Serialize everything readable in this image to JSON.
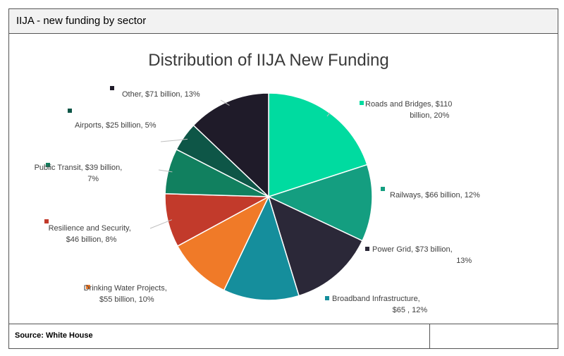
{
  "panel": {
    "title": "IIJA - new funding by sector",
    "source": "Source: White House",
    "note": ""
  },
  "chart_data": {
    "type": "pie",
    "title": "Distribution of IIJA New Funding",
    "slices": [
      {
        "label": "Roads and Bridges,  $110 billion, 20%",
        "lines": [
          "Roads and Bridges,  $110",
          "billion, 20%"
        ],
        "value": 110,
        "percent": 20,
        "color": "#00dba0"
      },
      {
        "label": "Railways,  $66 billion, 12%",
        "lines": [
          "Railways,  $66 billion, 12%"
        ],
        "value": 66,
        "percent": 12,
        "color": "#149e80"
      },
      {
        "label": "Power Grid,  $73 billion, 13%",
        "lines": [
          "Power Grid,  $73 billion,",
          "13%"
        ],
        "value": 73,
        "percent": 13,
        "color": "#2b2838"
      },
      {
        "label": "Broadband Infrastructure, $65 , 12%",
        "lines": [
          "Broadband Infrastructure,",
          "$65 , 12%"
        ],
        "value": 65,
        "percent": 12,
        "color": "#158e9c"
      },
      {
        "label": "Drinking Water Projects, $55 billion, 10%",
        "lines": [
          "Drinking Water Projects,",
          "$55 billion, 10%"
        ],
        "value": 55,
        "percent": 10,
        "color": "#f07a28"
      },
      {
        "label": "Resilience and Security, $46 billion, 8%",
        "lines": [
          "Resilience and Security,",
          "$46 billion, 8%"
        ],
        "value": 46,
        "percent": 8,
        "color": "#c23a2b"
      },
      {
        "label": "Public Transit,  $39 billion, 7%",
        "lines": [
          "Public Transit,  $39 billion,",
          "7%"
        ],
        "value": 39,
        "percent": 7,
        "color": "#11805f"
      },
      {
        "label": "Airports,  $25 billion, 5%",
        "lines": [
          "Airports,  $25 billion, 5%"
        ],
        "value": 25,
        "percent": 5,
        "color": "#0e5647"
      },
      {
        "label": "Other,  $71 billion, 13%",
        "lines": [
          "Other,  $71 billion, 13%"
        ],
        "value": 71,
        "percent": 13,
        "color": "#1f1b29"
      }
    ],
    "start_angle": "12 o'clock",
    "direction": "clockwise",
    "legend": "none",
    "label_placement": "outside with leader lines and color markers"
  }
}
